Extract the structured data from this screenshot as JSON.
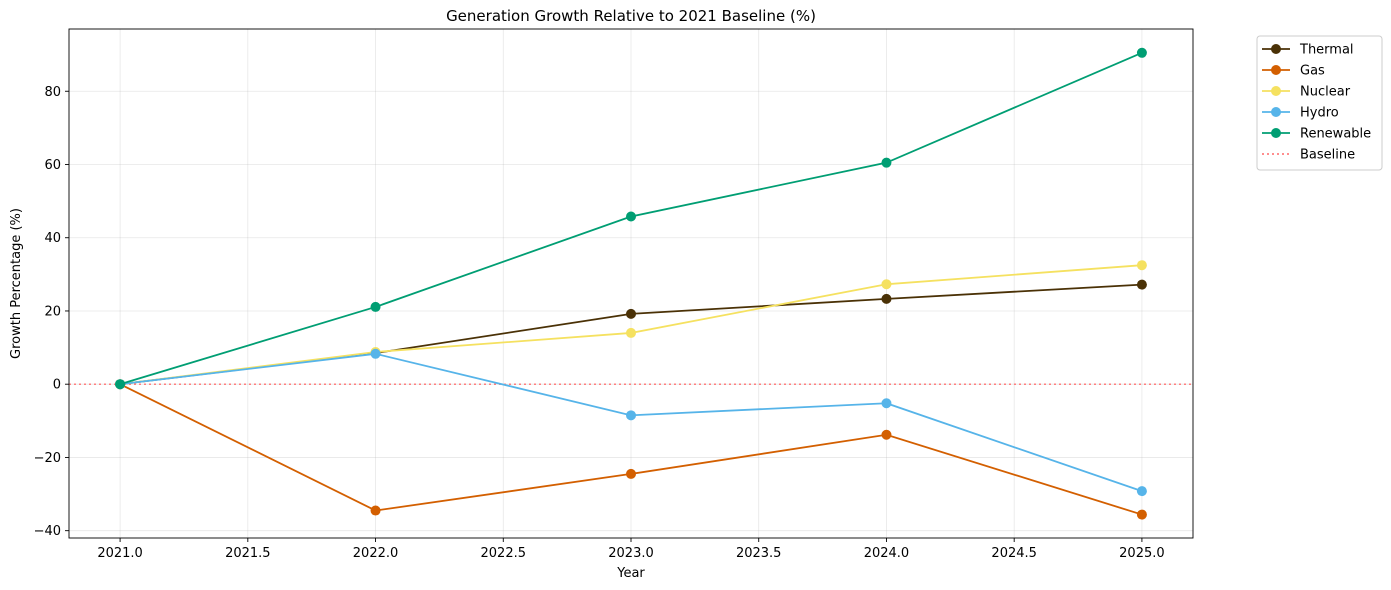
{
  "chart_data": {
    "type": "line",
    "title": "Generation Growth Relative to 2021 Baseline (%)",
    "xlabel": "Year",
    "ylabel": "Growth Percentage (%)",
    "x": [
      2021,
      2022,
      2023,
      2024,
      2025
    ],
    "xlim": [
      2020.8,
      2025.2
    ],
    "ylim": [
      -42,
      97
    ],
    "x_ticks": [
      2021.0,
      2021.5,
      2022.0,
      2022.5,
      2023.0,
      2023.5,
      2024.0,
      2024.5,
      2025.0
    ],
    "x_tick_labels": [
      "2021.0",
      "2021.5",
      "2022.0",
      "2022.5",
      "2023.0",
      "2023.5",
      "2024.0",
      "2024.5",
      "2025.0"
    ],
    "y_ticks": [
      -40,
      -20,
      0,
      20,
      40,
      60,
      80
    ],
    "y_tick_labels": [
      "−40",
      "−20",
      "0",
      "20",
      "40",
      "60",
      "80"
    ],
    "grid": true,
    "legend_position": "outside-top-right",
    "series": [
      {
        "name": "Thermal",
        "color": "#4a3106",
        "values": [
          0,
          8.5,
          19.2,
          23.3,
          27.2
        ]
      },
      {
        "name": "Gas",
        "color": "#d35f00",
        "values": [
          0,
          -34.5,
          -24.5,
          -13.8,
          -35.6
        ]
      },
      {
        "name": "Nuclear",
        "color": "#f5e160",
        "values": [
          0,
          8.8,
          14.0,
          27.3,
          32.5
        ]
      },
      {
        "name": "Hydro",
        "color": "#56b4e9",
        "values": [
          0,
          8.3,
          -8.5,
          -5.2,
          -29.2
        ]
      },
      {
        "name": "Renewable",
        "color": "#009e73",
        "values": [
          0,
          21.1,
          45.8,
          60.5,
          90.5
        ]
      }
    ],
    "baseline": {
      "name": "Baseline",
      "value": 0,
      "color": "#ff7f7f",
      "style": "dotted"
    }
  }
}
